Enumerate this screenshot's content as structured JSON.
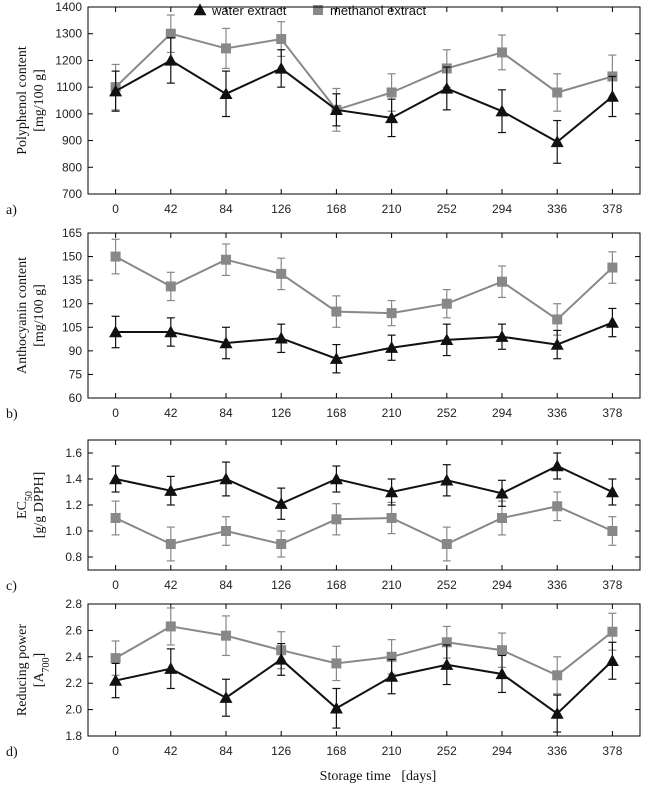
{
  "legend": [
    {
      "series": "water",
      "label": "water extract",
      "color": "#111111",
      "marker": "triangle"
    },
    {
      "series": "methanol",
      "label": "methanol extract",
      "color": "#888888",
      "marker": "square"
    }
  ],
  "x_axis_title": "Storage time   [days]",
  "chart_data": [
    {
      "type": "line",
      "panel_letter": "a)",
      "ylabel_lines": [
        "Polyphenol content",
        "[mg/100 g]"
      ],
      "ylim": [
        700,
        1400
      ],
      "yticks": [
        700,
        800,
        900,
        1000,
        1100,
        1200,
        1300,
        1400
      ],
      "ytick_labels": [
        "700",
        "800",
        "900",
        "1000",
        "1100",
        "1200",
        "1300",
        "1400"
      ],
      "x": [
        0,
        42,
        84,
        126,
        168,
        210,
        252,
        294,
        336,
        378
      ],
      "grid": false,
      "series": [
        {
          "key": "water",
          "name": "water extract",
          "values": [
            1085,
            1200,
            1075,
            1170,
            1015,
            985,
            1095,
            1010,
            895,
            1065
          ],
          "errors": [
            75,
            85,
            85,
            70,
            60,
            70,
            80,
            80,
            80,
            75
          ]
        },
        {
          "key": "methanol",
          "name": "methanol extract",
          "values": [
            1100,
            1300,
            1245,
            1280,
            1015,
            1080,
            1170,
            1230,
            1080,
            1140
          ],
          "errors": [
            85,
            70,
            75,
            65,
            80,
            70,
            70,
            65,
            70,
            80
          ]
        }
      ]
    },
    {
      "type": "line",
      "panel_letter": "b)",
      "ylabel_lines": [
        "Anthocyanin content",
        "[mg/100 g]"
      ],
      "ylim": [
        60,
        165
      ],
      "yticks": [
        60,
        75,
        90,
        105,
        120,
        135,
        150,
        165
      ],
      "ytick_labels": [
        "60",
        "75",
        "90",
        "105",
        "120",
        "135",
        "150",
        "165"
      ],
      "x": [
        0,
        42,
        84,
        126,
        168,
        210,
        252,
        294,
        336,
        378
      ],
      "grid": false,
      "series": [
        {
          "key": "water",
          "name": "water extract",
          "values": [
            102,
            102,
            95,
            98,
            85,
            92,
            97,
            99,
            94,
            108
          ],
          "errors": [
            10,
            9,
            10,
            9,
            9,
            8,
            10,
            8,
            9,
            9
          ]
        },
        {
          "key": "methanol",
          "name": "methanol extract",
          "values": [
            150,
            131,
            148,
            139,
            115,
            114,
            120,
            134,
            110,
            143
          ],
          "errors": [
            11,
            9,
            10,
            10,
            10,
            8,
            9,
            10,
            10,
            10
          ]
        }
      ]
    },
    {
      "type": "line",
      "panel_letter": "c)",
      "ylabel_lines": [
        "EC50",
        "[g/g DPPH]"
      ],
      "ylim": [
        0.7,
        1.7
      ],
      "yticks": [
        0.8,
        1.0,
        1.2,
        1.4,
        1.6
      ],
      "ytick_labels": [
        "0.8",
        "1.0",
        "1.2",
        "1.4",
        "1.6"
      ],
      "x": [
        0,
        42,
        84,
        126,
        168,
        210,
        252,
        294,
        336,
        378
      ],
      "grid": false,
      "series": [
        {
          "key": "water",
          "name": "water extract",
          "values": [
            1.4,
            1.31,
            1.4,
            1.21,
            1.4,
            1.3,
            1.39,
            1.29,
            1.5,
            1.3
          ],
          "errors": [
            0.1,
            0.11,
            0.13,
            0.12,
            0.1,
            0.1,
            0.12,
            0.1,
            0.1,
            0.1
          ]
        },
        {
          "key": "methanol",
          "name": "methanol extract",
          "values": [
            1.1,
            0.9,
            1.0,
            0.9,
            1.09,
            1.1,
            0.9,
            1.1,
            1.19,
            1.0
          ],
          "errors": [
            0.13,
            0.13,
            0.11,
            0.1,
            0.12,
            0.12,
            0.13,
            0.13,
            0.11,
            0.11
          ]
        }
      ]
    },
    {
      "type": "line",
      "panel_letter": "d)",
      "ylabel_lines": [
        "Reducing power",
        "[A700]"
      ],
      "ylim": [
        1.8,
        2.8
      ],
      "yticks": [
        1.8,
        2.0,
        2.2,
        2.4,
        2.6,
        2.8
      ],
      "ytick_labels": [
        "1.8",
        "2.0",
        "2.2",
        "2.4",
        "2.6",
        "2.8"
      ],
      "x": [
        0,
        42,
        84,
        126,
        168,
        210,
        252,
        294,
        336,
        378
      ],
      "grid": false,
      "series": [
        {
          "key": "water",
          "name": "water extract",
          "values": [
            2.22,
            2.31,
            2.09,
            2.38,
            2.01,
            2.25,
            2.34,
            2.27,
            1.97,
            2.37
          ],
          "errors": [
            0.13,
            0.15,
            0.14,
            0.12,
            0.15,
            0.13,
            0.15,
            0.14,
            0.14,
            0.14
          ]
        },
        {
          "key": "methanol",
          "name": "methanol extract",
          "values": [
            2.39,
            2.63,
            2.56,
            2.45,
            2.35,
            2.4,
            2.51,
            2.45,
            2.26,
            2.59
          ],
          "errors": [
            0.13,
            0.14,
            0.15,
            0.14,
            0.13,
            0.13,
            0.12,
            0.13,
            0.14,
            0.14
          ]
        }
      ]
    }
  ]
}
